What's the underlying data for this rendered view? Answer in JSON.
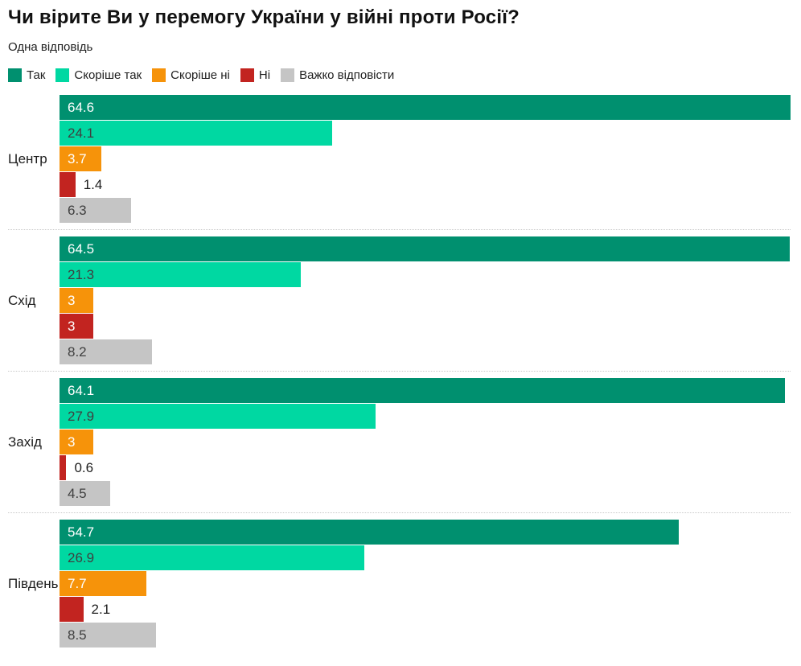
{
  "header": {
    "title": "Чи вірите Ви у перемогу України у війні проти Росії?",
    "subtitle": "Одна відповідь"
  },
  "legend": [
    {
      "label": "Так",
      "color": "#00906F"
    },
    {
      "label": "Скоріше так",
      "color": "#00D8A2"
    },
    {
      "label": "Скоріше ні",
      "color": "#F6930A"
    },
    {
      "label": "Ні",
      "color": "#C22420"
    },
    {
      "label": "Важко відповісти",
      "color": "#C5C5C5"
    }
  ],
  "chart_data": {
    "type": "bar",
    "orientation": "horizontal",
    "title": "Чи вірите Ви у перемогу України у війні проти Росії?",
    "subtitle": "Одна відповідь",
    "legend_position": "top",
    "grid": false,
    "value_labels": true,
    "xmax": 64.6,
    "series_names": [
      "Так",
      "Скоріше так",
      "Скоріше ні",
      "Ні",
      "Важко відповісти"
    ],
    "series_colors": [
      "#00906F",
      "#00D8A2",
      "#F6930A",
      "#C22420",
      "#C5C5C5"
    ],
    "categories": [
      "Центр",
      "Схід",
      "Захід",
      "Південь"
    ],
    "groups": [
      {
        "label": "Центр",
        "values": [
          64.6,
          24.1,
          3.7,
          1.4,
          6.3
        ]
      },
      {
        "label": "Схід",
        "values": [
          64.5,
          21.3,
          3,
          3,
          8.2
        ]
      },
      {
        "label": "Захід",
        "values": [
          64.1,
          27.9,
          3,
          0.6,
          4.5
        ]
      },
      {
        "label": "Південь",
        "values": [
          54.7,
          26.9,
          7.7,
          2.1,
          8.5
        ]
      }
    ]
  }
}
